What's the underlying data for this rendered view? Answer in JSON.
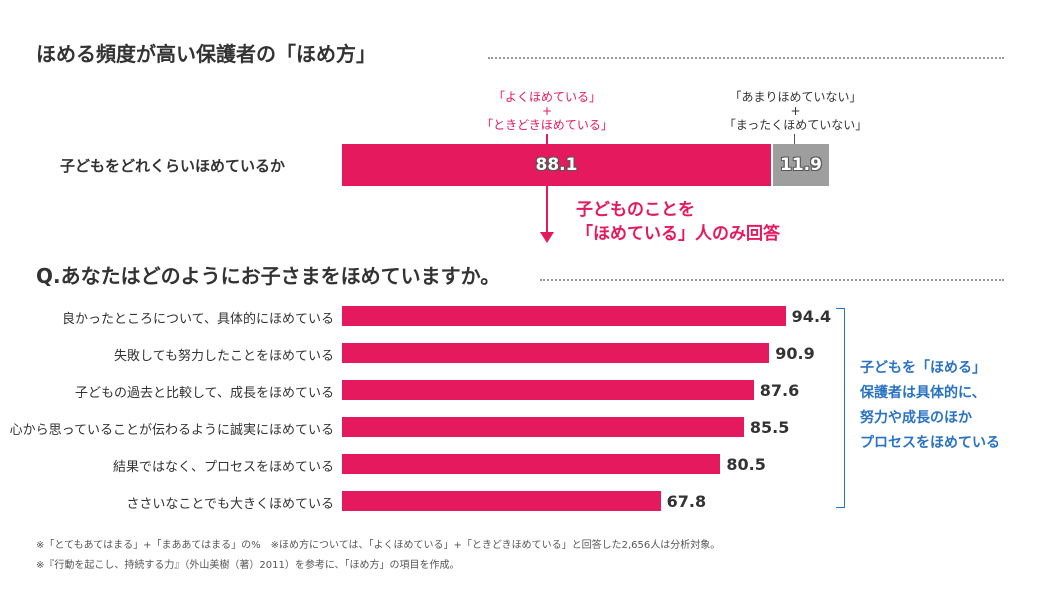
{
  "title": "ほめる頻度が高い保護者の「ほめ方」",
  "top_chart": {
    "pink_note": [
      "「よくほめている」",
      "+",
      "「ときどきほめている」"
    ],
    "gray_note": [
      "「あまりほめていない」",
      "+",
      "「まったくほめていない」"
    ],
    "row_label": "子どもをどれくらいほめているか",
    "colors": {
      "pink": "#e5195e",
      "gray": "#9e9e9f"
    }
  },
  "callout": [
    "子どものことを",
    "「ほめている」人のみ回答"
  ],
  "question": "Q.あなたはどのようにお子さまをほめていますか。",
  "summary_note": [
    "子どもを「ほめる」",
    "保護者は具体的に、",
    "努力や成長のほか",
    "プロセスをほめている"
  ],
  "footnotes": [
    "※「とてもあてはまる」+「まああてはまる」の%　※ほめ方については、「よくほめている」+「ときどきほめている」と回答した2,656人は分析対象。",
    "※『行動を起こし、持続する力』（外山美樹（著）2011）を参考に、「ほめ方」の項目を作成。"
  ],
  "chart_data": [
    {
      "type": "bar",
      "orientation": "horizontal",
      "stacked": true,
      "categories": [
        "子どもをどれくらいほめているか"
      ],
      "series": [
        {
          "name": "「よくほめている」+「ときどきほめている」",
          "values": [
            88.1
          ],
          "color": "#e5195e"
        },
        {
          "name": "「あまりほめていない」+「まったくほめていない」",
          "values": [
            11.9
          ],
          "color": "#9e9e9f"
        }
      ],
      "xlim": [
        0,
        100
      ]
    },
    {
      "type": "bar",
      "orientation": "horizontal",
      "title": "Q.あなたはどのようにお子さまをほめていますか。",
      "categories": [
        "良かったところについて、具体的にほめている",
        "失敗しても努力したことをほめている",
        "子どもの過去と比較して、成長をほめている",
        "心から思っていることが伝わるように誠実にほめている",
        "結果ではなく、プロセスをほめている",
        "ささいなことでも大きくほめている"
      ],
      "values": [
        94.4,
        90.9,
        87.6,
        85.5,
        80.5,
        67.8
      ],
      "color": "#e5195e",
      "xlim": [
        0,
        100
      ],
      "grid": false
    }
  ]
}
